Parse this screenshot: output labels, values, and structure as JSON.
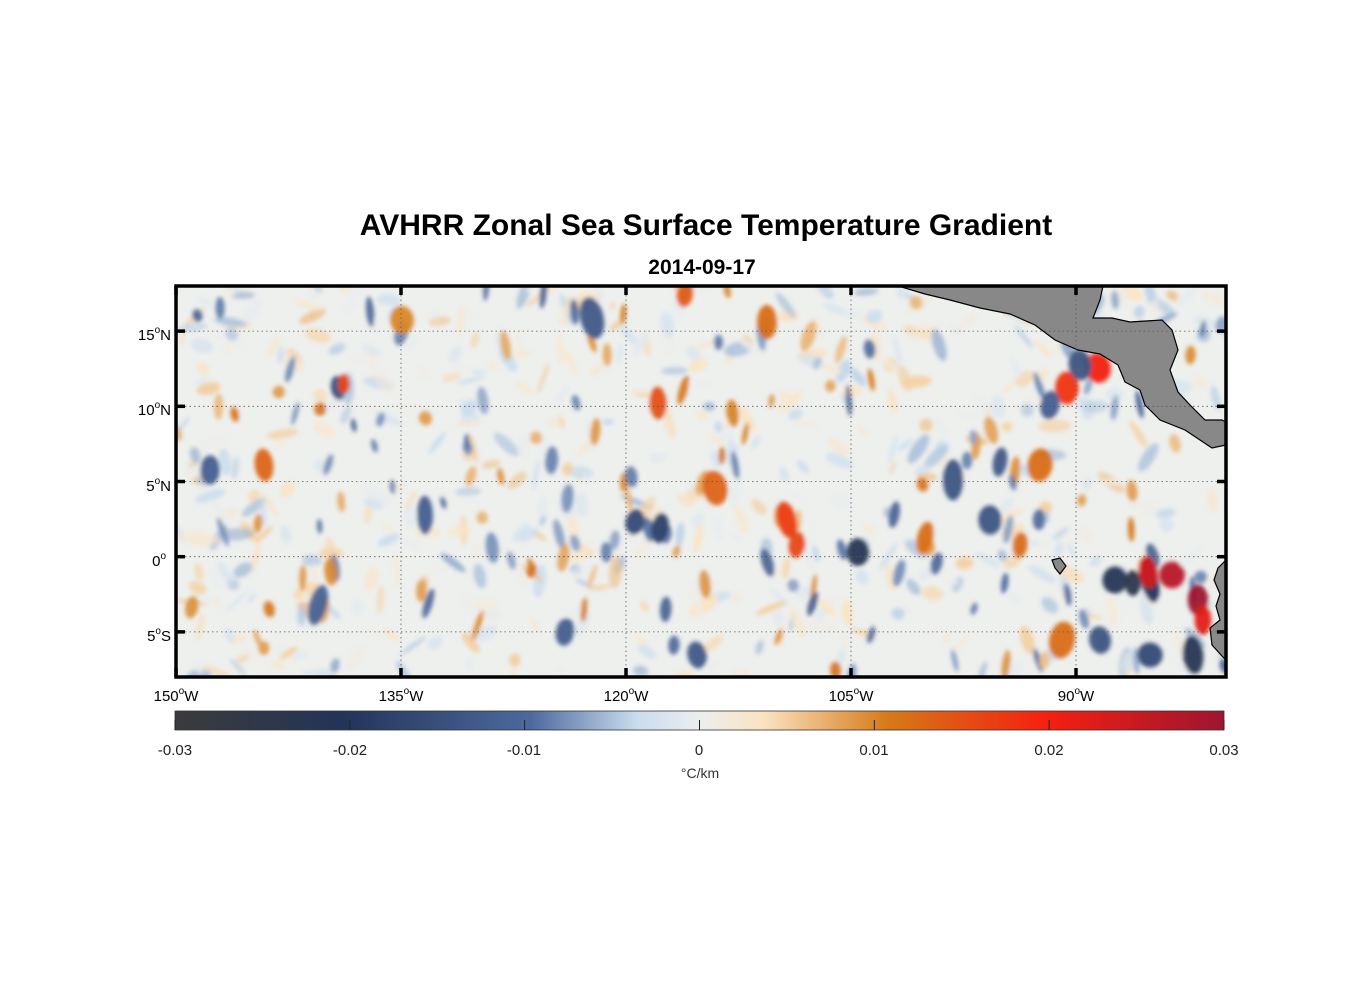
{
  "title": "AVHRR Zonal Sea Surface Temperature Gradient",
  "subtitle": "2014-09-17",
  "colors": {
    "land": "#888888",
    "coast": "#000000",
    "frame": "#000000",
    "colormap": [
      "#3b3b3b",
      "#233459",
      "#4d6a9e",
      "#c9dcee",
      "#eceeee",
      "#fbe3c2",
      "#d57a16",
      "#f52010",
      "#9e1530"
    ]
  },
  "map": {
    "lon_ticks": [
      {
        "deg": "150",
        "hemi": "W"
      },
      {
        "deg": "135",
        "hemi": "W"
      },
      {
        "deg": "120",
        "hemi": "W"
      },
      {
        "deg": "105",
        "hemi": "W"
      },
      {
        "deg": "90",
        "hemi": "W"
      }
    ],
    "lat_ticks": [
      {
        "deg": "15",
        "hemi": "N"
      },
      {
        "deg": "10",
        "hemi": "N"
      },
      {
        "deg": "5",
        "hemi": "N"
      },
      {
        "deg": "0",
        "hemi": ""
      },
      {
        "deg": "5",
        "hemi": "S"
      }
    ],
    "lon_range": [
      -150,
      -80
    ],
    "lat_range": [
      -8,
      18
    ],
    "gridlines": "dotted"
  },
  "colorbar": {
    "ticks": [
      "-0.03",
      "-0.02",
      "-0.01",
      "0",
      "0.01",
      "0.02",
      "0.03"
    ],
    "range": [
      -0.03,
      0.03
    ],
    "units": "°C/km"
  }
}
